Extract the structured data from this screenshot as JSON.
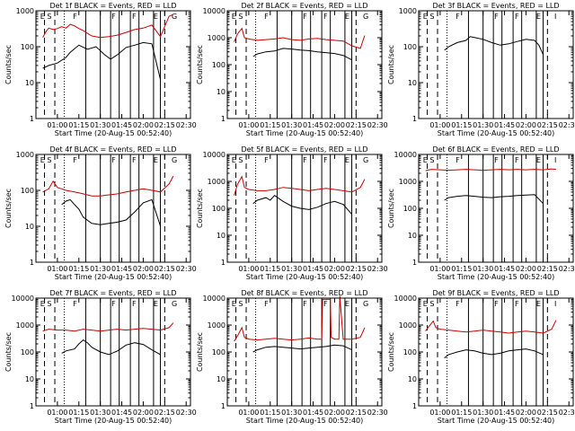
{
  "chart_data": [
    {
      "type": "line",
      "title": "Det 1f BLACK = Events, RED = LLD",
      "ylabel": "Counts/sec",
      "xlabel": "Start Time (20-Aug-15 00:52:40)",
      "ylim": [
        1,
        1000
      ],
      "ytick_labels": [
        "1",
        "10",
        "100",
        "1000"
      ],
      "xtick_labels": [
        "01:00",
        "01:15",
        "01:30",
        "01:45",
        "02:00",
        "02:15",
        "02:30"
      ],
      "marker_letters": [
        "E",
        "S",
        "F",
        "F",
        "F",
        "E",
        "G"
      ],
      "series": [
        {
          "color": "#cc0000",
          "x": [
            0.83,
            0.87,
            0.9,
            0.95,
            1.0,
            1.05,
            1.1,
            1.15,
            1.2,
            1.25,
            1.3,
            1.4,
            1.5,
            1.6,
            1.7,
            1.8,
            1.9,
            2.0,
            2.1,
            2.2,
            2.3,
            2.35
          ],
          "y": [
            180,
            270,
            330,
            300,
            320,
            360,
            330,
            420,
            380,
            320,
            280,
            200,
            180,
            190,
            210,
            250,
            300,
            330,
            400,
            190,
            700,
            800
          ]
        },
        {
          "color": "#000000",
          "x": [
            0.83,
            0.9,
            1.0,
            1.1,
            1.15,
            1.25,
            1.35,
            1.45,
            1.55,
            1.62,
            1.7,
            1.8,
            1.9,
            2.0,
            2.1,
            2.2
          ],
          "y": [
            25,
            30,
            35,
            50,
            70,
            110,
            85,
            100,
            60,
            45,
            60,
            95,
            110,
            130,
            120,
            12
          ]
        }
      ]
    },
    {
      "type": "line",
      "title": "Det 2f BLACK = Events, RED = LLD",
      "ylabel": "Counts/sec",
      "xlabel": "Start Time (20-Aug-15 00:52:40)",
      "ylim": [
        1,
        10000
      ],
      "ytick_labels": [
        "1",
        "10",
        "100",
        "1000",
        "10000"
      ],
      "xtick_labels": [
        "01:00",
        "01:15",
        "01:30",
        "01:45",
        "02:00",
        "02:15",
        "02:30"
      ],
      "marker_letters": [
        "E",
        "S",
        "F",
        "F",
        "F",
        "E",
        "G"
      ],
      "series": [
        {
          "color": "#cc0000",
          "x": [
            0.83,
            0.87,
            0.92,
            0.95,
            1.0,
            1.05,
            1.1,
            1.2,
            1.3,
            1.4,
            1.5,
            1.6,
            1.7,
            1.8,
            1.9,
            2.0,
            2.1,
            2.2,
            2.3,
            2.35
          ],
          "y": [
            700,
            1400,
            2200,
            1000,
            900,
            850,
            800,
            850,
            900,
            1000,
            850,
            800,
            900,
            950,
            850,
            800,
            750,
            500,
            400,
            1200
          ]
        },
        {
          "color": "#000000",
          "x": [
            1.05,
            1.1,
            1.2,
            1.3,
            1.4,
            1.5,
            1.6,
            1.7,
            1.8,
            1.9,
            2.0,
            2.1,
            2.2
          ],
          "y": [
            200,
            250,
            300,
            320,
            400,
            380,
            350,
            330,
            300,
            280,
            260,
            220,
            150
          ]
        }
      ]
    },
    {
      "type": "line",
      "title": "Det 3f BLACK = Events, RED = LLD",
      "ylabel": "Counts/sec",
      "xlabel": "Start Time (20-Aug-15 00:52:40)",
      "ylim": [
        1,
        1000
      ],
      "ytick_labels": [
        "1",
        "10",
        "100",
        "1000"
      ],
      "xtick_labels": [
        "01:00",
        "01:15",
        "01:30",
        "01:45",
        "02:00",
        "02:15",
        "02:30"
      ],
      "marker_letters": [
        "E",
        "S",
        "F",
        "F",
        "F",
        "E",
        "I"
      ],
      "series": [
        {
          "color": "#000000",
          "x": [
            1.05,
            1.1,
            1.2,
            1.3,
            1.35,
            1.4,
            1.5,
            1.6,
            1.7,
            1.8,
            1.9,
            2.0,
            2.1,
            2.15,
            2.2
          ],
          "y": [
            80,
            100,
            130,
            150,
            190,
            180,
            160,
            130,
            110,
            120,
            140,
            160,
            150,
            110,
            60
          ]
        }
      ]
    },
    {
      "type": "line",
      "title": "Det 4f BLACK = Events, RED = LLD",
      "ylabel": "Counts/sec",
      "xlabel": "Start Time (20-Aug-15 00:52:40)",
      "ylim": [
        1,
        1000
      ],
      "ytick_labels": [
        "1",
        "10",
        "100",
        "1000"
      ],
      "xtick_labels": [
        "01:00",
        "01:15",
        "01:30",
        "01:45",
        "02:00",
        "02:15",
        "02:30"
      ],
      "marker_letters": [
        "E",
        "S",
        "F",
        "F",
        "F",
        "E",
        "G"
      ],
      "series": [
        {
          "color": "#cc0000",
          "x": [
            0.83,
            0.9,
            0.95,
            1.0,
            1.05,
            1.1,
            1.2,
            1.3,
            1.4,
            1.5,
            1.6,
            1.7,
            1.8,
            1.9,
            2.0,
            2.1,
            2.2,
            2.3,
            2.35
          ],
          "y": [
            90,
            110,
            180,
            120,
            110,
            100,
            90,
            80,
            70,
            70,
            75,
            80,
            90,
            100,
            110,
            100,
            90,
            150,
            250
          ]
        },
        {
          "color": "#000000",
          "x": [
            1.05,
            1.1,
            1.15,
            1.2,
            1.25,
            1.3,
            1.4,
            1.5,
            1.6,
            1.7,
            1.8,
            1.9,
            2.0,
            2.1,
            2.2
          ],
          "y": [
            40,
            50,
            55,
            40,
            30,
            18,
            12,
            11,
            12,
            13,
            15,
            25,
            45,
            55,
            10
          ]
        }
      ]
    },
    {
      "type": "line",
      "title": "Det 5f BLACK = Events, RED = LLD",
      "ylabel": "Counts/sec",
      "xlabel": "Start Time (20-Aug-15 00:52:40)",
      "ylim": [
        1,
        10000
      ],
      "ytick_labels": [
        "1",
        "10",
        "100",
        "1000",
        "10000"
      ],
      "xtick_labels": [
        "01:00",
        "01:15",
        "01:30",
        "01:45",
        "02:00",
        "02:15",
        "02:30"
      ],
      "marker_letters": [
        "E",
        "S",
        "F",
        "F",
        "F",
        "E",
        "G"
      ],
      "series": [
        {
          "color": "#cc0000",
          "x": [
            0.83,
            0.87,
            0.92,
            0.95,
            1.0,
            1.1,
            1.2,
            1.3,
            1.4,
            1.5,
            1.6,
            1.7,
            1.8,
            1.9,
            2.0,
            2.1,
            2.2,
            2.3,
            2.35
          ],
          "y": [
            300,
            800,
            1500,
            600,
            500,
            450,
            450,
            500,
            600,
            550,
            500,
            450,
            500,
            550,
            500,
            450,
            400,
            600,
            1200
          ]
        },
        {
          "color": "#000000",
          "x": [
            1.05,
            1.1,
            1.2,
            1.25,
            1.3,
            1.4,
            1.5,
            1.6,
            1.7,
            1.8,
            1.9,
            2.0,
            2.1,
            2.2
          ],
          "y": [
            150,
            200,
            250,
            200,
            300,
            180,
            120,
            100,
            90,
            110,
            150,
            180,
            140,
            60
          ]
        }
      ]
    },
    {
      "type": "line",
      "title": "Det 6f BLACK = Events, RED = LLD",
      "ylabel": "Counts/sec",
      "xlabel": "Start Time (20-Aug-15 00:52:40)",
      "ylim": [
        1,
        10000
      ],
      "ytick_labels": [
        "1",
        "10",
        "100",
        "1000",
        "10000"
      ],
      "xtick_labels": [
        "01:00",
        "01:15",
        "01:30",
        "01:45",
        "02:00",
        "02:15",
        "02:30"
      ],
      "marker_letters": [
        "E",
        "S",
        "F",
        "F",
        "F",
        "E",
        "I"
      ],
      "series": [
        {
          "color": "#cc0000",
          "x": [
            0.83,
            0.9,
            1.0,
            1.1,
            1.2,
            1.3,
            1.4,
            1.5,
            1.6,
            1.7,
            1.8,
            1.9,
            2.0,
            2.1,
            2.2,
            2.3,
            2.35
          ],
          "y": [
            2500,
            2800,
            2700,
            2600,
            2700,
            2800,
            2700,
            2600,
            2700,
            2800,
            2700,
            2800,
            2700,
            2800,
            2700,
            2900,
            2800
          ]
        },
        {
          "color": "#000000",
          "x": [
            1.05,
            1.1,
            1.2,
            1.3,
            1.4,
            1.5,
            1.6,
            1.7,
            1.8,
            1.9,
            2.0,
            2.1,
            2.2
          ],
          "y": [
            200,
            250,
            280,
            300,
            280,
            260,
            250,
            270,
            280,
            300,
            310,
            320,
            150
          ]
        }
      ]
    },
    {
      "type": "line",
      "title": "Det 7f BLACK = Events, RED = LLD",
      "ylabel": "Counts/sec",
      "xlabel": "Start Time (20-Aug-15 00:52:40)",
      "ylim": [
        1,
        10000
      ],
      "ytick_labels": [
        "1",
        "10",
        "100",
        "1000",
        "10000"
      ],
      "xtick_labels": [
        "01:00",
        "01:15",
        "01:30",
        "01:45",
        "02:00",
        "02:15",
        "02:30"
      ],
      "marker_letters": [
        "E",
        "S",
        "F",
        "F",
        "F",
        "E",
        "G"
      ],
      "series": [
        {
          "color": "#cc0000",
          "x": [
            0.83,
            0.9,
            1.0,
            1.1,
            1.2,
            1.3,
            1.4,
            1.5,
            1.6,
            1.7,
            1.8,
            1.9,
            2.0,
            2.1,
            2.2,
            2.3,
            2.35
          ],
          "y": [
            600,
            700,
            650,
            650,
            600,
            700,
            650,
            600,
            650,
            700,
            650,
            700,
            750,
            700,
            650,
            800,
            1200
          ]
        },
        {
          "color": "#000000",
          "x": [
            1.05,
            1.1,
            1.2,
            1.25,
            1.3,
            1.35,
            1.4,
            1.5,
            1.6,
            1.7,
            1.8,
            1.9,
            2.0,
            2.1,
            2.2
          ],
          "y": [
            90,
            110,
            130,
            200,
            280,
            220,
            150,
            100,
            80,
            110,
            180,
            220,
            190,
            120,
            80
          ]
        }
      ]
    },
    {
      "type": "line",
      "title": "Det 8f BLACK = Events, RED = LLD",
      "ylabel": "Counts/sec",
      "xlabel": "Start Time (20-Aug-15 00:52:40)",
      "ylim": [
        1,
        10000
      ],
      "ytick_labels": [
        "1",
        "10",
        "100",
        "1000",
        "10000"
      ],
      "xtick_labels": [
        "01:00",
        "01:15",
        "01:30",
        "01:45",
        "02:00",
        "02:15",
        "02:30"
      ],
      "marker_letters": [
        "E",
        "S",
        "F",
        "F",
        "F",
        "E",
        "G"
      ],
      "series": [
        {
          "color": "#cc0000",
          "x": [
            0.83,
            0.87,
            0.92,
            0.95,
            1.0,
            1.1,
            1.2,
            1.3,
            1.4,
            1.5,
            1.6,
            1.7,
            1.8,
            1.85,
            1.86,
            1.95,
            1.96,
            2.0,
            2.05,
            2.06,
            2.1,
            2.2,
            2.3,
            2.35
          ],
          "y": [
            250,
            400,
            800,
            350,
            300,
            280,
            300,
            320,
            300,
            280,
            300,
            330,
            300,
            300,
            9000,
            9000,
            350,
            300,
            300,
            12000,
            300,
            300,
            350,
            800
          ]
        },
        {
          "color": "#000000",
          "x": [
            1.05,
            1.1,
            1.2,
            1.3,
            1.4,
            1.5,
            1.6,
            1.7,
            1.8,
            1.9,
            2.0,
            2.1,
            2.2
          ],
          "y": [
            100,
            120,
            150,
            160,
            150,
            140,
            130,
            140,
            150,
            160,
            180,
            170,
            120
          ]
        }
      ]
    },
    {
      "type": "line",
      "title": "Det 9f BLACK = Events, RED = LLD",
      "ylabel": "Counts/sec",
      "xlabel": "Start Time (20-Aug-15 00:52:40)",
      "ylim": [
        1,
        10000
      ],
      "ytick_labels": [
        "1",
        "10",
        "100",
        "1000",
        "10000"
      ],
      "xtick_labels": [
        "01:00",
        "01:15",
        "01:30",
        "01:45",
        "02:00",
        "02:15",
        "02:30"
      ],
      "marker_letters": [
        "E",
        "S",
        "F",
        "F",
        "F",
        "E",
        "I"
      ],
      "series": [
        {
          "color": "#cc0000",
          "x": [
            0.83,
            0.87,
            0.92,
            0.95,
            1.0,
            1.1,
            1.2,
            1.3,
            1.4,
            1.5,
            1.6,
            1.7,
            1.8,
            1.9,
            2.0,
            2.1,
            2.2,
            2.3,
            2.35
          ],
          "y": [
            600,
            900,
            1400,
            800,
            700,
            650,
            600,
            550,
            600,
            650,
            600,
            550,
            500,
            550,
            600,
            550,
            500,
            700,
            1500
          ]
        },
        {
          "color": "#000000",
          "x": [
            1.05,
            1.1,
            1.2,
            1.3,
            1.4,
            1.5,
            1.6,
            1.7,
            1.8,
            1.9,
            2.0,
            2.1,
            2.2
          ],
          "y": [
            60,
            80,
            100,
            120,
            110,
            90,
            80,
            90,
            110,
            120,
            130,
            110,
            80
          ]
        }
      ]
    }
  ]
}
